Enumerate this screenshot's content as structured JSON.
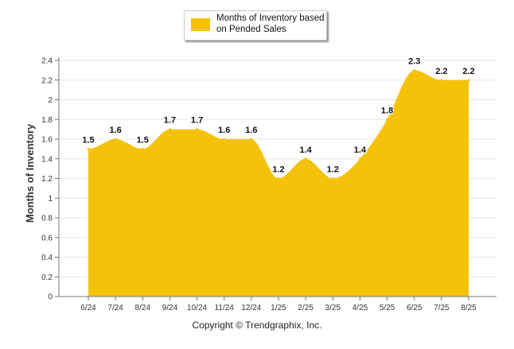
{
  "legend": {
    "series_label": "Months of Inventory based on Pended Sales"
  },
  "copyright": "Copyright © Trendgraphix, Inc.",
  "colors": {
    "area": "#f5c20a",
    "grid": "#e6e6e6",
    "axis": "#777777"
  },
  "chart_data": {
    "type": "area",
    "title": "",
    "xlabel": "",
    "ylabel": "Months of Inventory",
    "ylim": [
      0,
      2.4
    ],
    "yticks": [
      "0",
      "0.2",
      "0.4",
      "0.6",
      "0.8",
      "1",
      "1.2",
      "1.4",
      "1.6",
      "1.8",
      "2",
      "2.2",
      "2.4"
    ],
    "categories": [
      "6/24",
      "7/24",
      "8/24",
      "9/24",
      "10/24",
      "11/24",
      "12/24",
      "1/25",
      "2/25",
      "3/25",
      "4/25",
      "5/25",
      "6/25",
      "7/25",
      "8/25"
    ],
    "series": [
      {
        "name": "Months of Inventory based on Pended Sales",
        "values": [
          1.5,
          1.6,
          1.5,
          1.7,
          1.7,
          1.6,
          1.6,
          1.2,
          1.4,
          1.2,
          1.4,
          1.8,
          2.3,
          2.2,
          2.2
        ],
        "labels": [
          "1.5",
          "1.6",
          "1.5",
          "1.7",
          "1.7",
          "1.6",
          "1.6",
          "1.2",
          "1.4",
          "1.2",
          "1.4",
          "1.8",
          "2.3",
          "2.2",
          "2.2"
        ]
      }
    ],
    "grid": true,
    "legend_position": "top-center"
  }
}
